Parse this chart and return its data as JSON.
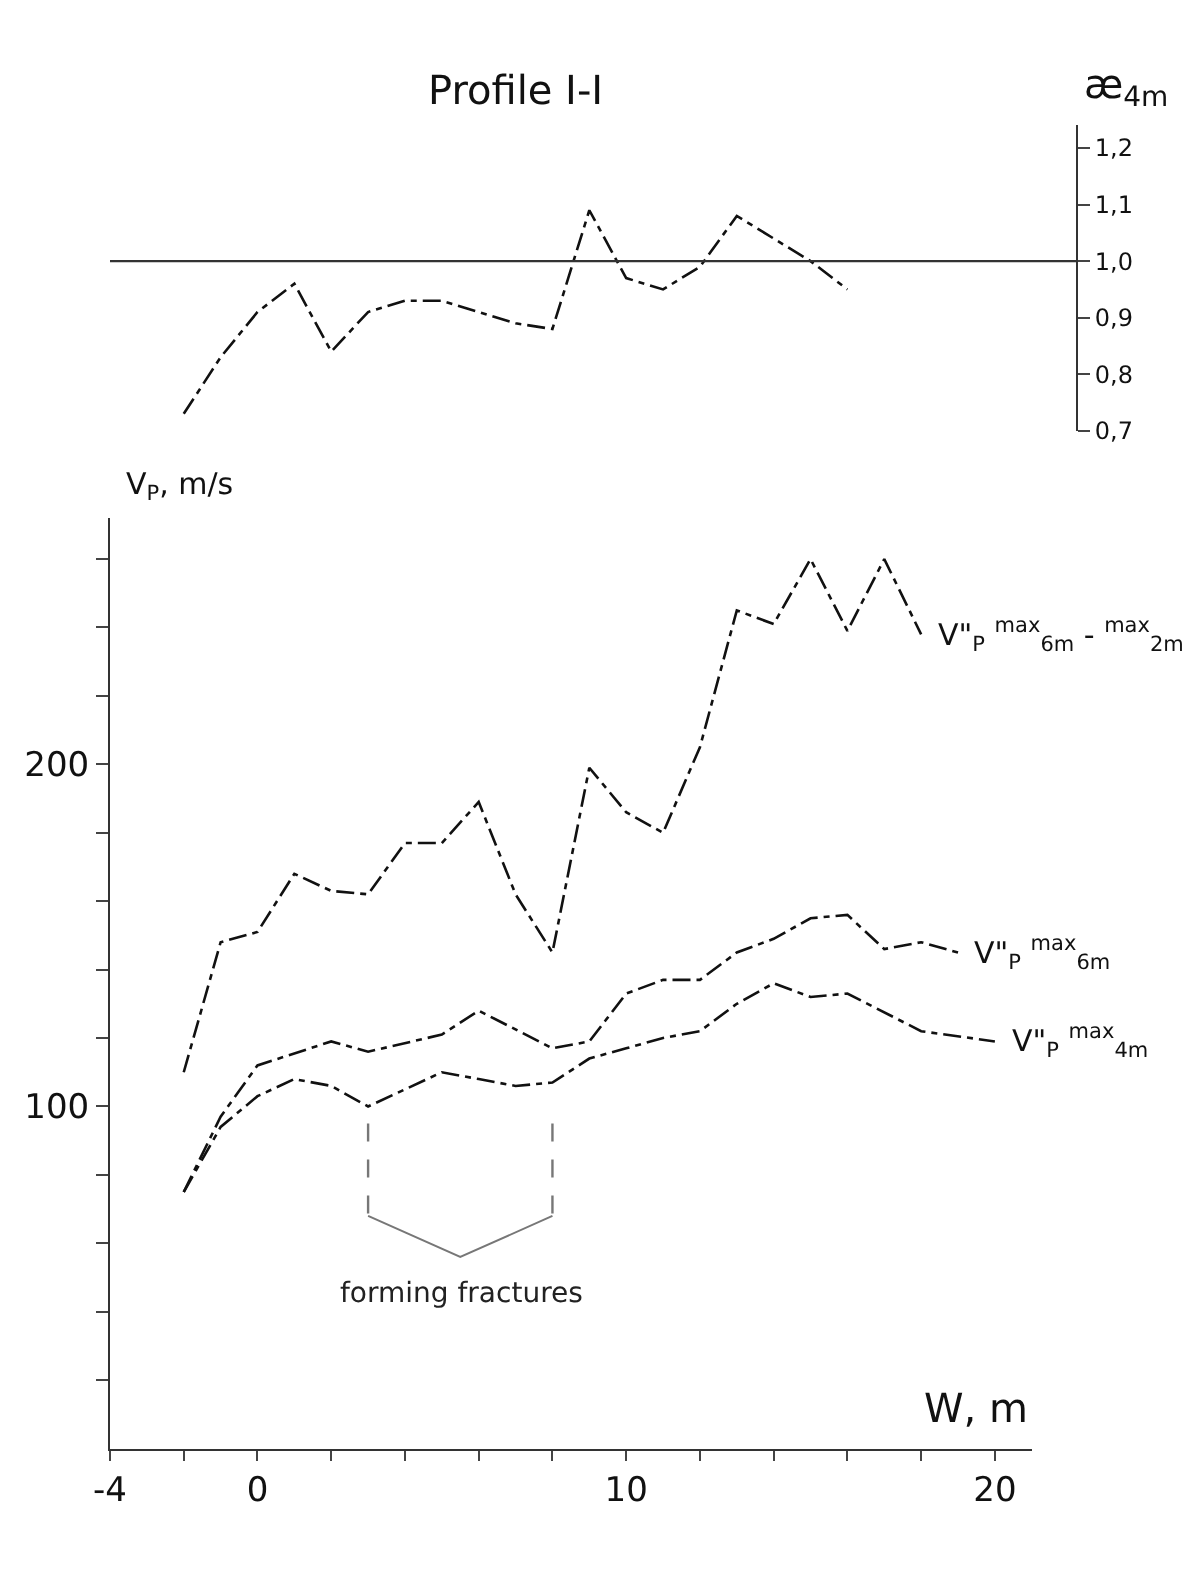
{
  "chart_data": [
    {
      "type": "line",
      "title": "Profile I-I",
      "ylabel": "æ$_{4m}$",
      "categories": [
        null,
        null,
        null,
        null,
        null,
        null,
        null,
        null,
        null,
        null,
        null,
        null,
        null,
        null,
        null,
        null,
        null,
        null,
        null
      ],
      "ylim": [
        0.7,
        1.24
      ],
      "tick_labels": "y",
      "grid": false,
      "legend": false,
      "marker": "none",
      "line_style": "dashed",
      "yticks": [
        {
          "value": 0.7,
          "label": "0,7"
        },
        {
          "value": 0.8,
          "label": "0,8"
        },
        {
          "value": 0.9,
          "label": "0,9"
        },
        {
          "value": 1.0,
          "label": "1,0"
        },
        {
          "value": 1.1,
          "label": "1,1"
        },
        {
          "value": 1.2,
          "label": "1,2"
        }
      ],
      "ref_lines": [
        {
          "axis": "y",
          "value": 1.0,
          "color": "#333333",
          "line_style": "solid"
        }
      ],
      "series": [
        {
          "color": "#111111",
          "values": [
            0.73,
            0.83,
            0.91,
            0.96,
            0.84,
            0.91,
            0.93,
            0.93,
            0.91,
            0.89,
            0.88,
            1.09,
            0.97,
            0.95,
            0.99,
            1.08,
            1.04,
            1.0,
            0.95
          ]
        }
      ]
    },
    {
      "type": "line",
      "xlabel": "W, m",
      "ylabel": "V$_{P}$, m/s",
      "xlim": [
        -4,
        21
      ],
      "ylim": [
        0,
        272
      ],
      "grid": false,
      "legend": false,
      "marker": "none",
      "line_style": "dashed",
      "xticks": [
        {
          "value": -4,
          "label": "-4"
        },
        {
          "value": -2,
          "label": null
        },
        0,
        {
          "value": 2,
          "label": null
        },
        {
          "value": 4,
          "label": null
        },
        {
          "value": 6,
          "label": null
        },
        {
          "value": 8,
          "label": null
        },
        10,
        {
          "value": 12,
          "label": null
        },
        {
          "value": 14,
          "label": null
        },
        {
          "value": 16,
          "label": null
        },
        {
          "value": 18,
          "label": null
        },
        20
      ],
      "yticks": [
        {
          "value": 20,
          "label": null
        },
        {
          "value": 40,
          "label": null
        },
        {
          "value": 60,
          "label": null
        },
        {
          "value": 80,
          "label": null
        },
        100,
        {
          "value": 120,
          "label": null
        },
        {
          "value": 140,
          "label": null
        },
        {
          "value": 160,
          "label": null
        },
        {
          "value": 180,
          "label": null
        },
        200,
        {
          "value": 220,
          "label": null
        },
        {
          "value": 240,
          "label": null
        },
        {
          "value": 260,
          "label": null
        }
      ],
      "annotations": [
        "forming fractures"
      ],
      "series": [
        {
          "name": "V\"$_{P}$ $^{max}$$_{6m}$ - $^{max}$$_{2m}$",
          "color": "#111111",
          "x": [
            -2,
            -1,
            0,
            1,
            2,
            3,
            4,
            5,
            6,
            7,
            8,
            9,
            10,
            11,
            12,
            13,
            14,
            15,
            16,
            17,
            18
          ],
          "values": [
            110,
            148,
            151,
            168,
            163,
            162,
            177,
            177,
            189,
            162,
            145,
            199,
            186,
            180,
            205,
            245,
            241,
            260,
            239,
            260,
            238
          ]
        },
        {
          "name": "V\"$_{P}$ $^{max}$$_{6m}$",
          "color": "#111111",
          "x": [
            -2,
            -1,
            0,
            2,
            3,
            5,
            6,
            8,
            9,
            10,
            11,
            12,
            13,
            14,
            15,
            16,
            17,
            18,
            19
          ],
          "values": [
            75,
            97,
            112,
            119,
            116,
            121,
            128,
            117,
            119,
            133,
            137,
            137,
            145,
            149,
            155,
            156,
            146,
            148,
            145
          ]
        },
        {
          "name": "V\"$_{P}$ $^{max}$$_{4m}$",
          "color": "#111111",
          "x": [
            -2,
            -1,
            0,
            1,
            2,
            3,
            5,
            6,
            7,
            8,
            9,
            10,
            11,
            12,
            13,
            14,
            15,
            16,
            18,
            20
          ],
          "values": [
            75,
            94,
            103,
            108,
            106,
            100,
            110,
            108,
            106,
            107,
            114,
            117,
            120,
            122,
            130,
            136,
            132,
            133,
            122,
            119
          ]
        }
      ]
    }
  ]
}
